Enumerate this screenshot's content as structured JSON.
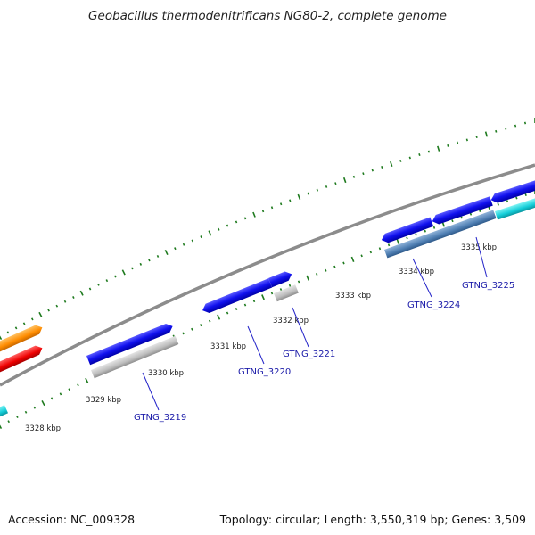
{
  "title": "Geobacillus thermodenitrificans NG80-2, complete genome",
  "footer": {
    "accession": "Accession: NC_009328",
    "stats": "Topology: circular; Length: 3,550,319 bp; Genes: 3,509"
  },
  "colors": {
    "backbone": "#8c8c8c",
    "tick": "#1e7a1e",
    "label_line": "#2323c8",
    "gene_label": "#1a1aa8"
  },
  "kbp_labels": [
    "3328 kbp",
    "3329 kbp",
    "3330 kbp",
    "3331 kbp",
    "3332 kbp",
    "3333 kbp",
    "3334 kbp",
    "3335 kbp"
  ],
  "gene_labels": [
    "GTNG_3219",
    "GTNG_3220",
    "GTNG_3221",
    "GTNG_3224",
    "GTNG_3225"
  ]
}
